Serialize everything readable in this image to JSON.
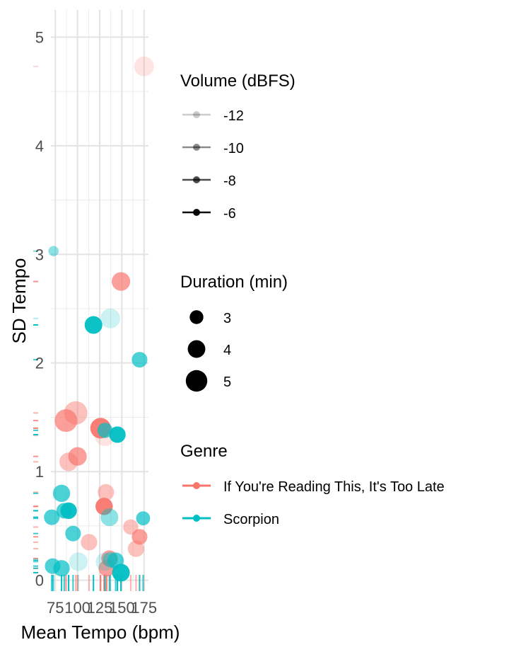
{
  "chart_data": {
    "type": "scatter",
    "xlabel": "Mean Tempo (bpm)",
    "ylabel": "SD Tempo",
    "xlim": [
      70,
      180
    ],
    "ylim": [
      -0.1,
      5.25
    ],
    "x_ticks": [
      75,
      100,
      125,
      150,
      175
    ],
    "y_ticks": [
      0,
      1,
      2,
      3,
      4,
      5
    ],
    "grid": true,
    "legend_position": "right",
    "legends": {
      "volume": {
        "title": "Volume (dBFS)",
        "entries": [
          {
            "label": "-12",
            "alpha": 0.2
          },
          {
            "label": "-10",
            "alpha": 0.45
          },
          {
            "label": "-8",
            "alpha": 0.7
          },
          {
            "label": "-6",
            "alpha": 0.95
          }
        ]
      },
      "duration": {
        "title": "Duration (min)",
        "entries": [
          {
            "label": "3",
            "value": 3
          },
          {
            "label": "4",
            "value": 4
          },
          {
            "label": "5",
            "value": 5
          }
        ]
      },
      "genre": {
        "title": "Genre",
        "entries": [
          {
            "label": "If You're Reading This, It's Too Late",
            "color": "#F8766D"
          },
          {
            "label": "Scorpion",
            "color": "#00BFC4"
          }
        ]
      }
    },
    "series": [
      {
        "name": "If You're Reading This, It's Too Late",
        "color": "#F8766D",
        "points": [
          {
            "x": 175,
            "y": 4.73,
            "duration": 4.3,
            "volume": -12
          },
          {
            "x": 149,
            "y": 2.75,
            "duration": 4.0,
            "volume": -8
          },
          {
            "x": 98,
            "y": 1.54,
            "duration": 5.2,
            "volume": -10
          },
          {
            "x": 87,
            "y": 1.47,
            "duration": 5.0,
            "volume": -8
          },
          {
            "x": 126,
            "y": 1.4,
            "duration": 4.5,
            "volume": -6
          },
          {
            "x": 131,
            "y": 1.33,
            "duration": 4.5,
            "volume": -12
          },
          {
            "x": 100,
            "y": 1.14,
            "duration": 4.0,
            "volume": -8
          },
          {
            "x": 90,
            "y": 1.09,
            "duration": 4.0,
            "volume": -10
          },
          {
            "x": 132,
            "y": 0.81,
            "duration": 3.5,
            "volume": -10
          },
          {
            "x": 130,
            "y": 0.68,
            "duration": 3.7,
            "volume": -6
          },
          {
            "x": 113,
            "y": 0.35,
            "duration": 3.5,
            "volume": -10
          },
          {
            "x": 160,
            "y": 0.49,
            "duration": 3.2,
            "volume": -10
          },
          {
            "x": 170,
            "y": 0.4,
            "duration": 3.3,
            "volume": -8
          },
          {
            "x": 166,
            "y": 0.29,
            "duration": 3.5,
            "volume": -10
          },
          {
            "x": 136,
            "y": 0.2,
            "duration": 3.5,
            "volume": -8
          },
          {
            "x": 133,
            "y": 0.11,
            "duration": 3.5,
            "volume": -8
          }
        ]
      },
      {
        "name": "Scorpion",
        "color": "#00BFC4",
        "points": [
          {
            "x": 73,
            "y": 3.03,
            "duration": 2.0,
            "volume": -10
          },
          {
            "x": 137,
            "y": 2.41,
            "duration": 4.3,
            "volume": -12
          },
          {
            "x": 118,
            "y": 2.35,
            "duration": 3.8,
            "volume": -6
          },
          {
            "x": 170,
            "y": 2.03,
            "duration": 3.3,
            "volume": -8
          },
          {
            "x": 131,
            "y": 1.38,
            "duration": 3.2,
            "volume": -8
          },
          {
            "x": 145,
            "y": 1.34,
            "duration": 3.5,
            "volume": -6
          },
          {
            "x": 82,
            "y": 0.8,
            "duration": 3.7,
            "volume": -8
          },
          {
            "x": 85,
            "y": 0.64,
            "duration": 3.3,
            "volume": -8
          },
          {
            "x": 90,
            "y": 0.64,
            "duration": 3.5,
            "volume": -6
          },
          {
            "x": 71,
            "y": 0.58,
            "duration": 3.3,
            "volume": -8
          },
          {
            "x": 136,
            "y": 0.58,
            "duration": 3.8,
            "volume": -10
          },
          {
            "x": 174,
            "y": 0.57,
            "duration": 2.9,
            "volume": -8
          },
          {
            "x": 95,
            "y": 0.43,
            "duration": 3.3,
            "volume": -8
          },
          {
            "x": 101,
            "y": 0.17,
            "duration": 4.0,
            "volume": -12
          },
          {
            "x": 131,
            "y": 0.17,
            "duration": 4.0,
            "volume": -12
          },
          {
            "x": 143,
            "y": 0.18,
            "duration": 3.5,
            "volume": -8
          },
          {
            "x": 137,
            "y": 0.19,
            "duration": 3.2,
            "volume": -10
          },
          {
            "x": 72,
            "y": 0.13,
            "duration": 3.3,
            "volume": -8
          },
          {
            "x": 82,
            "y": 0.11,
            "duration": 3.5,
            "volume": -8
          },
          {
            "x": 149,
            "y": 0.07,
            "duration": 3.8,
            "volume": -6
          }
        ]
      }
    ]
  }
}
